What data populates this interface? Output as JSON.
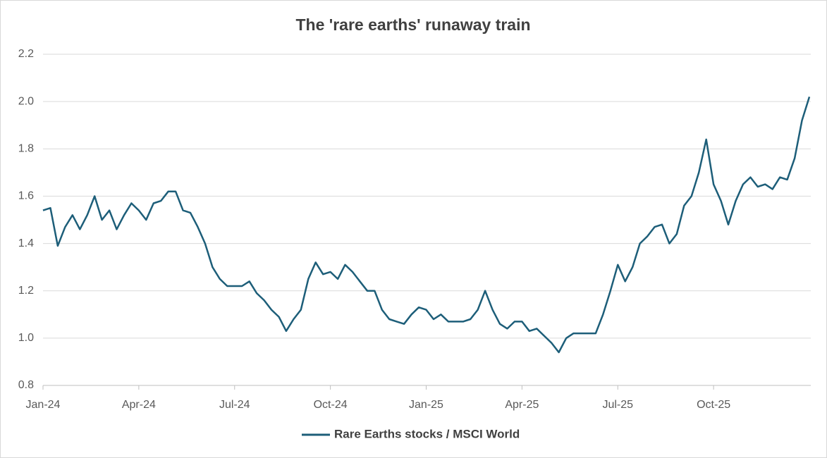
{
  "chart_data": {
    "type": "line",
    "title": "The 'rare earths' runaway train",
    "categories": [
      "Jan-24",
      null,
      null,
      null,
      null,
      null,
      null,
      null,
      null,
      null,
      null,
      null,
      null,
      "Apr-24",
      null,
      null,
      null,
      null,
      null,
      null,
      null,
      null,
      null,
      null,
      null,
      null,
      "Jul-24",
      null,
      null,
      null,
      null,
      null,
      null,
      null,
      null,
      null,
      null,
      null,
      null,
      "Oct-24",
      null,
      null,
      null,
      null,
      null,
      null,
      null,
      null,
      null,
      null,
      null,
      null,
      "Jan-25",
      null,
      null,
      null,
      null,
      null,
      null,
      null,
      null,
      null,
      null,
      null,
      null,
      "Apr-25",
      null,
      null,
      null,
      null,
      null,
      null,
      null,
      null,
      null,
      null,
      null,
      null,
      "Jul-25",
      null,
      null,
      null,
      null,
      null,
      null,
      null,
      null,
      null,
      null,
      null,
      null,
      "Oct-25",
      null,
      null,
      null,
      null,
      null,
      null,
      null,
      null,
      null,
      null,
      null,
      null,
      null
    ],
    "series": [
      {
        "name": "Rare Earths stocks / MSCI World",
        "color": "#1d5e79",
        "values": [
          1.54,
          1.55,
          1.39,
          1.47,
          1.52,
          1.46,
          1.52,
          1.6,
          1.5,
          1.54,
          1.46,
          1.52,
          1.57,
          1.54,
          1.5,
          1.57,
          1.58,
          1.62,
          1.62,
          1.54,
          1.53,
          1.47,
          1.4,
          1.3,
          1.25,
          1.22,
          1.22,
          1.22,
          1.24,
          1.19,
          1.16,
          1.12,
          1.09,
          1.03,
          1.08,
          1.12,
          1.25,
          1.32,
          1.27,
          1.28,
          1.25,
          1.31,
          1.28,
          1.24,
          1.2,
          1.2,
          1.12,
          1.08,
          1.07,
          1.06,
          1.1,
          1.13,
          1.12,
          1.08,
          1.1,
          1.07,
          1.07,
          1.07,
          1.08,
          1.12,
          1.2,
          1.12,
          1.06,
          1.04,
          1.07,
          1.07,
          1.03,
          1.04,
          1.01,
          0.98,
          0.94,
          1.0,
          1.02,
          1.02,
          1.02,
          1.02,
          1.1,
          1.2,
          1.31,
          1.24,
          1.3,
          1.4,
          1.43,
          1.47,
          1.48,
          1.4,
          1.44,
          1.56,
          1.6,
          1.7,
          1.84,
          1.65,
          1.58,
          1.48,
          1.58,
          1.65,
          1.68,
          1.64,
          1.65,
          1.63,
          1.68,
          1.67,
          1.76,
          1.92,
          2.02
        ]
      }
    ],
    "ylim": [
      0.8,
      2.2
    ],
    "yticks": [
      {
        "value": 0.8,
        "label": "0.8"
      },
      {
        "value": 1.0,
        "label": "1.0"
      },
      {
        "value": 1.2,
        "label": "1.2"
      },
      {
        "value": 1.4,
        "label": "1.4"
      },
      {
        "value": 1.6,
        "label": "1.6"
      },
      {
        "value": 1.8,
        "label": "1.8"
      },
      {
        "value": 2.0,
        "label": "2.0"
      },
      {
        "value": 2.2,
        "label": "2.2"
      }
    ],
    "grid": true,
    "legend": "bottom"
  }
}
